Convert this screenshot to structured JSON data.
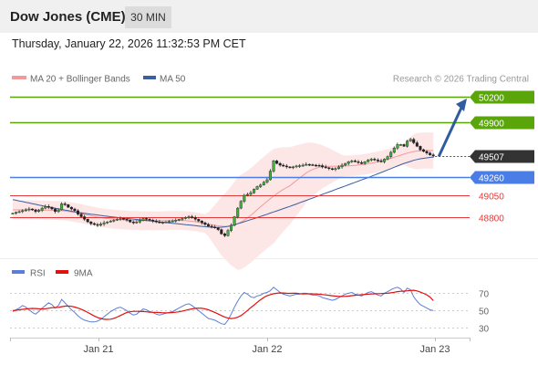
{
  "header": {
    "title": "Dow Jones (CME)",
    "timeframe": "30 MIN",
    "datetime": "Thursday, January 22, 2026 11:32:53 PM CET"
  },
  "credit": "Research © 2026 Trading Central",
  "colors": {
    "resistance": "#5aa50a",
    "pivot": "#4a7ee6",
    "support": "#e23a3a",
    "arrow": "#2e5c9e",
    "last": "#333333",
    "ma50": "#3b5fa0",
    "ma20": "#f29a9a",
    "rsi": "#5b7fd6",
    "rsi_ma": "#e01010"
  },
  "chart_data": [
    {
      "type": "candlestick",
      "legend": [
        {
          "label": "MA 20 + Bollinger Bands",
          "color": "#f29a9a"
        },
        {
          "label": "MA 50",
          "color": "#3b5fa0"
        }
      ],
      "ylim": [
        48370,
        50260
      ],
      "xticks": [
        "Jan 21",
        "Jan 22",
        "Jan 23"
      ],
      "last_price": 49507,
      "levels": [
        {
          "value": 50200,
          "label": "50200",
          "kind": "target"
        },
        {
          "value": 49900,
          "label": "49900",
          "kind": "resistance"
        },
        {
          "value": 49260,
          "label": "49260",
          "kind": "pivot"
        },
        {
          "value": 49050,
          "label": "49050",
          "kind": "support"
        },
        {
          "value": 48800,
          "label": "48800",
          "kind": "support"
        }
      ],
      "close": [
        48840,
        48850,
        48860,
        48870,
        48880,
        48890,
        48880,
        48860,
        48875,
        48900,
        48920,
        48910,
        48890,
        48860,
        48880,
        48950,
        48940,
        48910,
        48890,
        48870,
        48830,
        48800,
        48770,
        48740,
        48720,
        48710,
        48700,
        48715,
        48730,
        48740,
        48750,
        48760,
        48770,
        48780,
        48770,
        48760,
        48740,
        48730,
        48740,
        48760,
        48780,
        48770,
        48760,
        48750,
        48740,
        48730,
        48735,
        48740,
        48745,
        48750,
        48760,
        48770,
        48780,
        48790,
        48800,
        48790,
        48770,
        48750,
        48730,
        48710,
        48690,
        48680,
        48670,
        48650,
        48600,
        48580,
        48640,
        48700,
        48800,
        48900,
        48980,
        49050,
        49060,
        49080,
        49120,
        49150,
        49170,
        49200,
        49230,
        49330,
        49450,
        49420,
        49400,
        49390,
        49380,
        49375,
        49380,
        49390,
        49395,
        49400,
        49410,
        49405,
        49400,
        49398,
        49395,
        49380,
        49370,
        49360,
        49350,
        49360,
        49380,
        49400,
        49420,
        49440,
        49450,
        49440,
        49430,
        49420,
        49440,
        49460,
        49470,
        49460,
        49450,
        49440,
        49470,
        49500,
        49550,
        49600,
        49640,
        49640,
        49620,
        49680,
        49700,
        49660,
        49620,
        49580,
        49560,
        49540,
        49520,
        49507
      ],
      "ma50": [
        49000,
        48992,
        48984,
        48976,
        48968,
        48960,
        48952,
        48944,
        48936,
        48928,
        48920,
        48913,
        48906,
        48899,
        48892,
        48885,
        48878,
        48871,
        48864,
        48857,
        48850,
        48845,
        48840,
        48835,
        48830,
        48825,
        48820,
        48815,
        48810,
        48805,
        48800,
        48796,
        48792,
        48788,
        48784,
        48780,
        48776,
        48772,
        48768,
        48764,
        48760,
        48756,
        48752,
        48748,
        48744,
        48740,
        48736,
        48732,
        48728,
        48724,
        48720,
        48716,
        48712,
        48708,
        48704,
        48700,
        48696,
        48692,
        48688,
        48684,
        48680,
        48678,
        48676,
        48676,
        48678,
        48682,
        48688,
        48696,
        48706,
        48718,
        48730,
        48742,
        48754,
        48766,
        48778,
        48790,
        48803,
        48816,
        48829,
        48842,
        48855,
        48868,
        48881,
        48894,
        48907,
        48920,
        48934,
        48948,
        48962,
        48976,
        48990,
        49004,
        49018,
        49032,
        49046,
        49060,
        49074,
        49088,
        49102,
        49116,
        49130,
        49144,
        49158,
        49172,
        49186,
        49200,
        49214,
        49228,
        49242,
        49256,
        49270,
        49285,
        49300,
        49315,
        49330,
        49345,
        49360,
        49375,
        49390,
        49405,
        49420,
        49432,
        49444,
        49456,
        49466,
        49474,
        49480,
        49485,
        49490,
        49495
      ],
      "ma20": [
        48880,
        48880,
        48880,
        48881,
        48881,
        48882,
        48881,
        48880,
        48879,
        48878,
        48877,
        48876,
        48875,
        48874,
        48872,
        48870,
        48866,
        48862,
        48856,
        48850,
        48844,
        48836,
        48828,
        48820,
        48812,
        48804,
        48796,
        48790,
        48784,
        48779,
        48775,
        48772,
        48769,
        48766,
        48763,
        48760,
        48758,
        48757,
        48756,
        48755,
        48754,
        48753,
        48753,
        48753,
        48753,
        48753,
        48754,
        48755,
        48756,
        48757,
        48758,
        48757,
        48756,
        48754,
        48751,
        48747,
        48742,
        48736,
        48728,
        48720,
        48712,
        48705,
        48699,
        48694,
        48690,
        48688,
        48690,
        48696,
        48706,
        48720,
        48738,
        48760,
        48786,
        48816,
        48848,
        48882,
        48916,
        48948,
        48980,
        49010,
        49040,
        49068,
        49094,
        49118,
        49140,
        49160,
        49190,
        49220,
        49250,
        49280,
        49310,
        49332,
        49350,
        49364,
        49374,
        49380,
        49384,
        49386,
        49387,
        49388,
        49389,
        49390,
        49391,
        49393,
        49395,
        49398,
        49402,
        49406,
        49411,
        49417,
        49424,
        49431,
        49439,
        49448,
        49458,
        49469,
        49480,
        49492,
        49504,
        49516,
        49528,
        49540,
        49550,
        49558,
        49564,
        49568,
        49570,
        49571,
        49571,
        49570
      ],
      "bb_upper": [
        48990,
        48990,
        48990,
        48991,
        48991,
        48992,
        48991,
        48990,
        48989,
        48988,
        48987,
        48986,
        48985,
        48984,
        48982,
        48980,
        48976,
        48972,
        48966,
        48960,
        48954,
        48946,
        48938,
        48930,
        48922,
        48914,
        48906,
        48900,
        48894,
        48889,
        48885,
        48882,
        48879,
        48876,
        48873,
        48870,
        48868,
        48867,
        48866,
        48865,
        48864,
        48863,
        48863,
        48863,
        48863,
        48863,
        48864,
        48865,
        48866,
        48867,
        48868,
        48867,
        48866,
        48864,
        48861,
        48857,
        48852,
        48846,
        48838,
        48830,
        48852,
        48895,
        48939,
        48984,
        49030,
        49068,
        49110,
        49156,
        49206,
        49260,
        49288,
        49310,
        49336,
        49366,
        49398,
        49432,
        49466,
        49498,
        49530,
        49560,
        49590,
        49598,
        49604,
        49608,
        49610,
        49610,
        49620,
        49630,
        49640,
        49650,
        49660,
        49662,
        49660,
        49654,
        49644,
        49630,
        49614,
        49596,
        49577,
        49558,
        49539,
        49520,
        49511,
        49513,
        49515,
        49518,
        49522,
        49526,
        49531,
        49537,
        49544,
        49551,
        49559,
        49568,
        49578,
        49589,
        49600,
        49612,
        49624,
        49636,
        49648,
        49700,
        49730,
        49758,
        49774,
        49778,
        49780,
        49781,
        49781,
        49780
      ],
      "bb_lower": [
        48770,
        48770,
        48770,
        48771,
        48771,
        48772,
        48771,
        48770,
        48769,
        48768,
        48767,
        48766,
        48765,
        48764,
        48762,
        48760,
        48756,
        48752,
        48746,
        48740,
        48734,
        48726,
        48718,
        48710,
        48702,
        48694,
        48686,
        48680,
        48674,
        48669,
        48665,
        48662,
        48659,
        48656,
        48653,
        48650,
        48648,
        48647,
        48646,
        48645,
        48644,
        48643,
        48643,
        48643,
        48643,
        48643,
        48644,
        48645,
        48646,
        48647,
        48648,
        48647,
        48646,
        48644,
        48641,
        48637,
        48632,
        48626,
        48618,
        48610,
        48572,
        48515,
        48459,
        48404,
        48350,
        48308,
        48270,
        48236,
        48206,
        48180,
        48188,
        48210,
        48236,
        48266,
        48298,
        48332,
        48366,
        48398,
        48430,
        48460,
        48490,
        48538,
        48584,
        48628,
        48670,
        48710,
        48760,
        48810,
        48860,
        48910,
        48960,
        49002,
        49040,
        49074,
        49104,
        49130,
        49154,
        49176,
        49197,
        49218,
        49239,
        49260,
        49271,
        49273,
        49275,
        49278,
        49282,
        49286,
        49291,
        49297,
        49304,
        49311,
        49319,
        49328,
        49338,
        49349,
        49360,
        49372,
        49384,
        49396,
        49408,
        49380,
        49370,
        49358,
        49354,
        49358,
        49360,
        49361,
        49361,
        49360
      ]
    },
    {
      "type": "line",
      "legend": [
        {
          "label": "RSI",
          "color": "#5b7fd6"
        },
        {
          "label": "9MA",
          "color": "#e01010"
        }
      ],
      "ylim": [
        20,
        80
      ],
      "yticks": [
        30,
        50,
        70
      ],
      "rsi": [
        48,
        50,
        52,
        55,
        53,
        50,
        47,
        45,
        48,
        52,
        55,
        58,
        56,
        52,
        55,
        62,
        58,
        54,
        50,
        47,
        43,
        40,
        38,
        37,
        36,
        36,
        37,
        39,
        42,
        45,
        48,
        50,
        52,
        53,
        51,
        49,
        46,
        44,
        45,
        48,
        51,
        50,
        48,
        47,
        45,
        44,
        45,
        46,
        47,
        48,
        50,
        52,
        54,
        56,
        57,
        55,
        52,
        49,
        46,
        43,
        40,
        39,
        38,
        36,
        34,
        33,
        38,
        45,
        53,
        60,
        66,
        70,
        68,
        65,
        64,
        66,
        67,
        69,
        70,
        72,
        76,
        73,
        70,
        68,
        67,
        66,
        67,
        68,
        68,
        69,
        69,
        68,
        67,
        67,
        66,
        64,
        63,
        62,
        61,
        62,
        64,
        66,
        68,
        69,
        70,
        68,
        67,
        66,
        68,
        70,
        71,
        69,
        67,
        66,
        69,
        71,
        73,
        75,
        76,
        74,
        70,
        75,
        73,
        65,
        60,
        56,
        54,
        52,
        50,
        49
      ],
      "rsi_ma": [
        49,
        49.5,
        50,
        50.5,
        51,
        51.4,
        51.6,
        51.5,
        51.2,
        51,
        51.2,
        51.8,
        52.4,
        52.6,
        52.8,
        53.6,
        54.2,
        54.4,
        54,
        53.2,
        52,
        50.6,
        48.8,
        46.9,
        44.9,
        42.8,
        41.2,
        40,
        39.1,
        38.9,
        39.2,
        40.1,
        41.6,
        43.4,
        45.2,
        46.9,
        47.7,
        48.2,
        48.2,
        48.1,
        48,
        47.7,
        47.3,
        47.1,
        47,
        46.8,
        46.5,
        46.4,
        46.5,
        46.8,
        47.2,
        47.7,
        48.5,
        49.4,
        50.3,
        51.1,
        51.7,
        51.9,
        51.7,
        51.2,
        50,
        48.5,
        46.9,
        45.2,
        43.4,
        41.7,
        40.4,
        39.9,
        40.3,
        41.5,
        43.4,
        46.1,
        49.2,
        52.5,
        55.5,
        58.6,
        61.6,
        64.2,
        66.2,
        67.5,
        68.5,
        69.1,
        69.5,
        69.4,
        69.1,
        68.9,
        69,
        69,
        68.6,
        68.3,
        68.4,
        68.4,
        68.3,
        68.2,
        68,
        67.6,
        67.2,
        66.7,
        66.2,
        65.8,
        65.5,
        65.4,
        65.5,
        65.8,
        66.3,
        66.7,
        67.1,
        67.4,
        67.7,
        68,
        68.2,
        68.4,
        68.6,
        68.7,
        68.9,
        69.2,
        69.6,
        70.2,
        70.9,
        71.4,
        71.6,
        71.9,
        72.3,
        72.5,
        71.8,
        70.4,
        68.9,
        67.3,
        64.6,
        60.5
      ]
    }
  ]
}
